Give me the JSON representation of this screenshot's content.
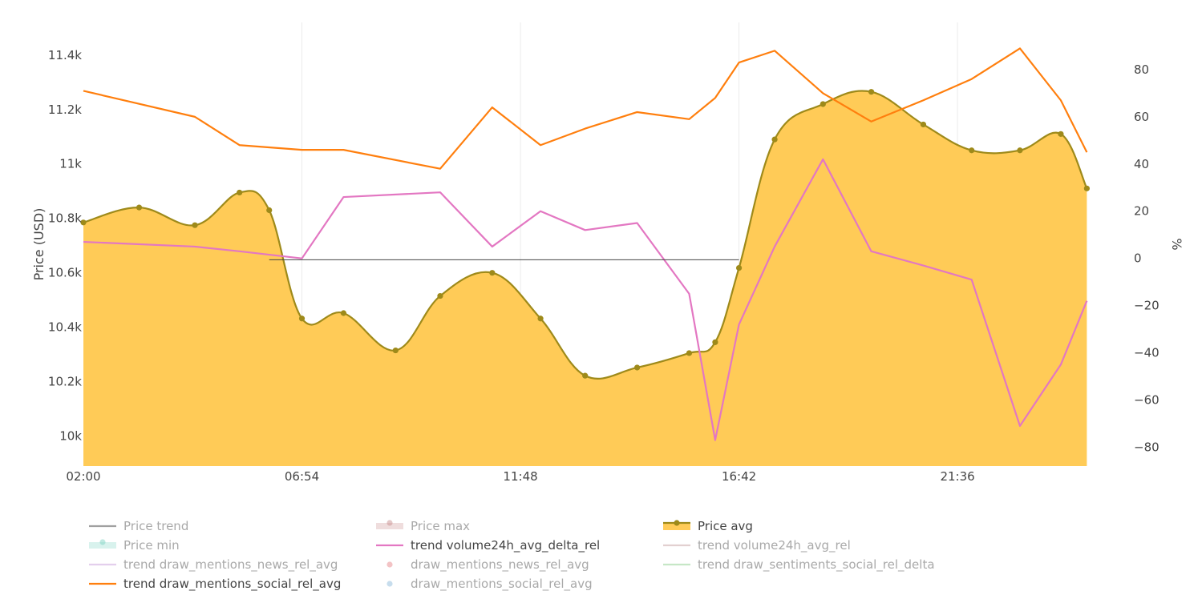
{
  "chart_data": {
    "type": "line",
    "x": [
      "02:00",
      "03:15",
      "04:30",
      "05:30",
      "06:10",
      "06:54",
      "07:50",
      "09:00",
      "10:00",
      "11:10",
      "12:15",
      "13:15",
      "14:25",
      "15:35",
      "16:10",
      "16:42",
      "17:30",
      "18:35",
      "19:40",
      "20:50",
      "21:55",
      "23:00",
      "23:55",
      "24:30"
    ],
    "x_ticks": [
      "02:00",
      "06:54",
      "11:48",
      "16:42",
      "21:36"
    ],
    "series": [
      {
        "name": "Price avg",
        "axis": "left",
        "shown": true,
        "fill": true,
        "markers": true,
        "color": "#9e8a1a",
        "fill_color": "#ffcb57",
        "values": [
          10785,
          10840,
          10775,
          10895,
          10830,
          10432,
          10452,
          10315,
          10515,
          10600,
          10432,
          10222,
          10252,
          10305,
          10345,
          10618,
          11090,
          11220,
          11265,
          11145,
          11050,
          11050,
          11110,
          10910
        ]
      },
      {
        "name": "trend volume24h_avg_delta_rel",
        "axis": "right",
        "shown": true,
        "color": "#e377c2",
        "x": [
          "02:00",
          "04:30",
          "05:30",
          "06:54",
          "07:50",
          "10:00",
          "11:10",
          "12:15",
          "13:15",
          "14:25",
          "15:35",
          "16:10",
          "16:42",
          "17:30",
          "18:35",
          "19:40",
          "20:50",
          "21:55",
          "23:00",
          "23:55",
          "24:30"
        ],
        "values": [
          7,
          5,
          3,
          0,
          26,
          28,
          5,
          20,
          12,
          15,
          -15,
          -77,
          -28,
          5,
          42,
          3,
          -3,
          -9,
          -71,
          -45,
          -18
        ]
      },
      {
        "name": "trend draw_mentions_social_rel_avg",
        "axis": "right",
        "shown": true,
        "color": "#ff7f0e",
        "x": [
          "02:00",
          "04:30",
          "05:30",
          "06:54",
          "07:50",
          "10:00",
          "11:10",
          "12:15",
          "13:15",
          "14:25",
          "15:35",
          "16:10",
          "16:42",
          "17:30",
          "18:35",
          "19:40",
          "20:50",
          "21:55",
          "23:00",
          "23:55",
          "24:30"
        ],
        "values": [
          71,
          60,
          48,
          46,
          46,
          38,
          64,
          48,
          55,
          62,
          59,
          68,
          83,
          88,
          70,
          58,
          67,
          76,
          89,
          67,
          45
        ]
      },
      {
        "name": "Price trend",
        "axis": "left",
        "shown": true,
        "color": "#444444",
        "x": [
          "06:10",
          "16:42"
        ],
        "values": [
          10648,
          10648
        ]
      }
    ],
    "y_left": {
      "title": "Price (USD)",
      "range": [
        9890,
        11520
      ],
      "ticks": [
        10000,
        10200,
        10400,
        10600,
        10800,
        11000,
        11200,
        11400
      ],
      "tick_labels": [
        "10k",
        "10.2k",
        "10.4k",
        "10.6k",
        "10.8k",
        "11k",
        "11.2k",
        "11.4k"
      ]
    },
    "y_right": {
      "title": "%",
      "range": [
        -88,
        100
      ],
      "ticks": [
        -80,
        -60,
        -40,
        -20,
        0,
        20,
        40,
        60,
        80
      ],
      "tick_labels": [
        "−80",
        "−60",
        "−40",
        "−20",
        "0",
        "20",
        "40",
        "60",
        "80"
      ]
    },
    "x_range": [
      "02:00",
      "25:30"
    ],
    "grid": "vertical",
    "legend_position": "bottom"
  },
  "legend": [
    {
      "label": "Price trend",
      "shown": false,
      "style": "line",
      "color": "#444444"
    },
    {
      "label": "Price max",
      "shown": false,
      "style": "band",
      "color": "#c98f8f"
    },
    {
      "label": "Price avg",
      "shown": true,
      "style": "fill",
      "color": "#9e8a1a",
      "fill": "#ffcb57"
    },
    {
      "label": "Price min",
      "shown": false,
      "style": "band",
      "color": "#7fd3c4"
    },
    {
      "label": "trend volume24h_avg_delta_rel",
      "shown": true,
      "style": "line",
      "color": "#e377c2"
    },
    {
      "label": "trend volume24h_avg_rel",
      "shown": false,
      "style": "line",
      "color": "#c7a3a3"
    },
    {
      "label": "trend draw_mentions_news_rel_avg",
      "shown": false,
      "style": "line",
      "color": "#c9a0dc"
    },
    {
      "label": "draw_mentions_news_rel_avg",
      "shown": false,
      "style": "dot",
      "color": "#e8888b"
    },
    {
      "label": "trend draw_sentiments_social_rel_delta",
      "shown": false,
      "style": "line",
      "color": "#8ed08e"
    },
    {
      "label": "trend draw_mentions_social_rel_avg",
      "shown": true,
      "style": "line",
      "color": "#ff7f0e"
    },
    {
      "label": "draw_mentions_social_rel_avg",
      "shown": false,
      "style": "dot",
      "color": "#8fbcdc"
    }
  ]
}
